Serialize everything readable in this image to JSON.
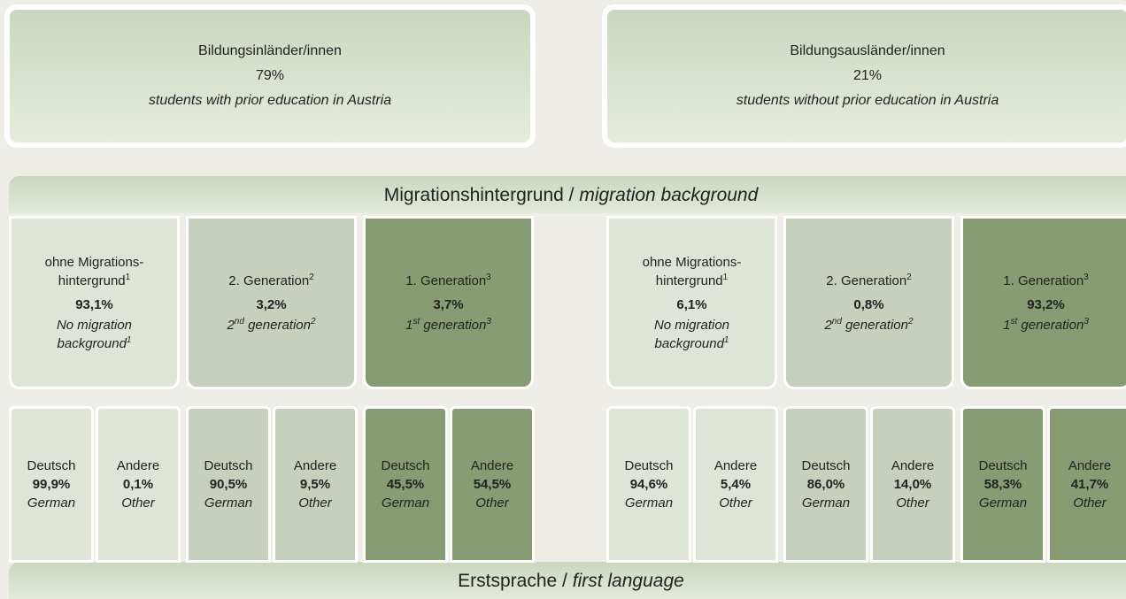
{
  "top_boxes": [
    {
      "title": "Bildungsinländer/innen",
      "share": "79%",
      "subtitle": "students with prior education in Austria"
    },
    {
      "title": "Bildungsausländer/innen",
      "share": "21%",
      "subtitle": "students without prior education in Austria"
    }
  ],
  "band_top": {
    "de": "Migrationshintergrund",
    "separator": "/",
    "en": "migration background"
  },
  "band_bottom": {
    "de": "Erstsprache",
    "separator": "/",
    "en": "first language"
  },
  "groups": [
    {
      "categories": [
        {
          "de": "ohne Migrations-hintergrund",
          "de_note": "1",
          "share": "93,1%",
          "en": "No migration background",
          "en_note": "1",
          "languages": [
            {
              "de": "Deutsch",
              "share": "99,9%",
              "en": "German"
            },
            {
              "de": "Andere",
              "share": "0,1%",
              "en": "Other"
            }
          ]
        },
        {
          "de": "2. Generation",
          "de_note": "2",
          "share": "3,2%",
          "en_ord": "2",
          "en_ord_sup": "nd",
          "en": "generation",
          "en_note": "2",
          "languages": [
            {
              "de": "Deutsch",
              "share": "90,5%",
              "en": "German"
            },
            {
              "de": "Andere",
              "share": "9,5%",
              "en": "Other"
            }
          ]
        },
        {
          "de": "1. Generation",
          "de_note": "3",
          "share": "3,7%",
          "en_ord": "1",
          "en_ord_sup": "st",
          "en": "generation",
          "en_note": "3",
          "languages": [
            {
              "de": "Deutsch",
              "share": "45,5%",
              "en": "German"
            },
            {
              "de": "Andere",
              "share": "54,5%",
              "en": "Other"
            }
          ]
        }
      ]
    },
    {
      "categories": [
        {
          "de": "ohne Migrations-hintergrund",
          "de_note": "1",
          "share": "6,1%",
          "en": "No migration background",
          "en_note": "1",
          "languages": [
            {
              "de": "Deutsch",
              "share": "94,6%",
              "en": "German"
            },
            {
              "de": "Andere",
              "share": "5,4%",
              "en": "Other"
            }
          ]
        },
        {
          "de": "2. Generation",
          "de_note": "2",
          "share": "0,8%",
          "en_ord": "2",
          "en_ord_sup": "nd",
          "en": "generation",
          "en_note": "2",
          "languages": [
            {
              "de": "Deutsch",
              "share": "86,0%",
              "en": "German"
            },
            {
              "de": "Andere",
              "share": "14,0%",
              "en": "Other"
            }
          ]
        },
        {
          "de": "1. Generation",
          "de_note": "3",
          "share": "93,2%",
          "en_ord": "1",
          "en_ord_sup": "st",
          "en": "generation",
          "en_note": "3",
          "languages": [
            {
              "de": "Deutsch",
              "share": "58,3%",
              "en": "German"
            },
            {
              "de": "Andere",
              "share": "41,7%",
              "en": "Other"
            }
          ]
        }
      ]
    }
  ]
}
